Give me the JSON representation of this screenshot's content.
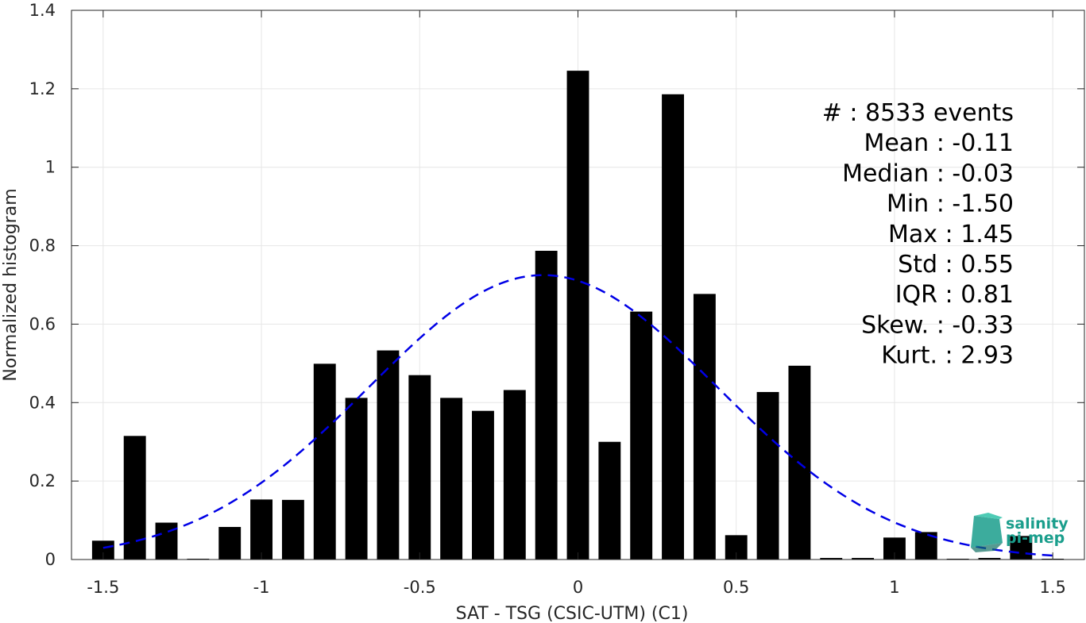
{
  "chart_data": {
    "type": "bar",
    "xlabel": "SAT - TSG (CSIC-UTM) (C1)",
    "ylabel": "Normalized histogram",
    "xlim": [
      -1.6,
      1.6
    ],
    "ylim": [
      0,
      1.4
    ],
    "xticks": [
      -1.5,
      -1,
      -0.5,
      0,
      0.5,
      1,
      1.5
    ],
    "xtick_labels": [
      "-1.5",
      "-1",
      "-0.5",
      "0",
      "0.5",
      "1",
      "1.5"
    ],
    "yticks": [
      0,
      0.2,
      0.4,
      0.6,
      0.8,
      1,
      1.2,
      1.4
    ],
    "ytick_labels": [
      "0",
      "0.2",
      "0.4",
      "0.6",
      "0.8",
      "1",
      "1.2",
      "1.4"
    ],
    "grid": true,
    "bar_width": 0.07,
    "bars": {
      "x": [
        -1.5,
        -1.4,
        -1.3,
        -1.2,
        -1.1,
        -1.0,
        -0.9,
        -0.8,
        -0.7,
        -0.6,
        -0.5,
        -0.4,
        -0.3,
        -0.2,
        -0.1,
        0.0,
        0.1,
        0.2,
        0.3,
        0.4,
        0.5,
        0.6,
        0.7,
        0.8,
        0.9,
        1.0,
        1.1,
        1.2,
        1.3,
        1.4,
        1.5
      ],
      "values": [
        0.048,
        0.315,
        0.094,
        0.002,
        0.083,
        0.153,
        0.152,
        0.499,
        0.412,
        0.533,
        0.47,
        0.412,
        0.379,
        0.432,
        0.787,
        1.246,
        0.3,
        0.632,
        1.186,
        0.677,
        0.062,
        0.427,
        0.494,
        0.004,
        0.004,
        0.056,
        0.07,
        0.002,
        0.004,
        0.06,
        0.002
      ],
      "color": "#000000"
    },
    "fit": {
      "type": "gaussian",
      "mean": -0.11,
      "std": 0.55,
      "peak": 0.725,
      "x_range": [
        -1.5,
        1.5
      ],
      "color": "#0000e6",
      "style": "dashed"
    },
    "stats": [
      {
        "label": "#  ",
        "value": ": 8533 events"
      },
      {
        "label": "Mean ",
        "value": ": -0.11"
      },
      {
        "label": "Median ",
        "value": ": -0.03"
      },
      {
        "label": "Min ",
        "value": ": -1.50"
      },
      {
        "label": "Max ",
        "value": ": 1.45"
      },
      {
        "label": "Std ",
        "value": ": 0.55"
      },
      {
        "label": "IQR ",
        "value": ": 0.81"
      },
      {
        "label": "Skew. ",
        "value": ": -0.33"
      },
      {
        "label": "Kurt. ",
        "value": ": 2.93"
      }
    ],
    "stats_placement": "top-right"
  },
  "logo": {
    "line1": "salinity",
    "line2": "pi-mep",
    "color": "#1a9e8c"
  }
}
